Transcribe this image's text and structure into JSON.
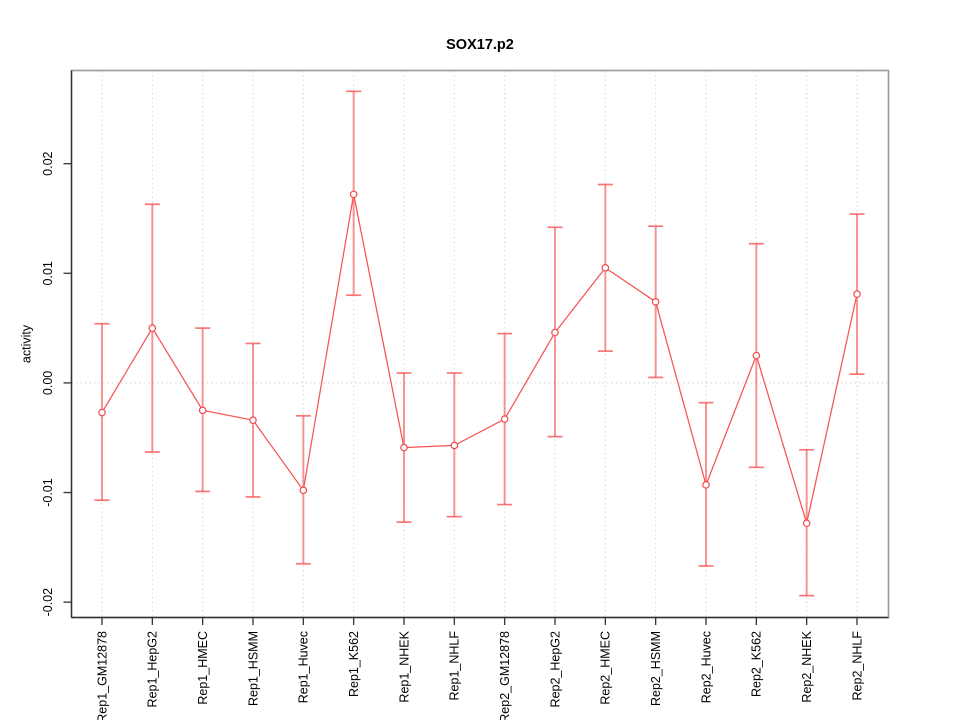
{
  "chart_data": {
    "type": "line",
    "title": "SOX17.p2",
    "xlabel": "",
    "ylabel": "activity",
    "categories": [
      "Rep1_GM12878",
      "Rep1_HepG2",
      "Rep1_HMEC",
      "Rep1_HSMM",
      "Rep1_Huvec",
      "Rep1_K562",
      "Rep1_NHEK",
      "Rep1_NHLF",
      "Rep2_GM12878",
      "Rep2_HepG2",
      "Rep2_HMEC",
      "Rep2_HSMM",
      "Rep2_Huvec",
      "Rep2_K562",
      "Rep2_NHEK",
      "Rep2_NHLF"
    ],
    "series": [
      {
        "name": "activity",
        "values": [
          -0.0027,
          0.005,
          -0.0025,
          -0.0034,
          -0.0098,
          0.0172,
          -0.0059,
          -0.0057,
          -0.0033,
          0.0046,
          0.0105,
          0.0074,
          -0.0093,
          0.0025,
          -0.0128,
          0.0081
        ],
        "err_low": [
          -0.0107,
          -0.0063,
          -0.0099,
          -0.0104,
          -0.0165,
          0.008,
          -0.0127,
          -0.0122,
          -0.0111,
          -0.0049,
          0.0029,
          0.0005,
          -0.0167,
          -0.0077,
          -0.0194,
          0.0008
        ],
        "err_high": [
          0.0054,
          0.0163,
          0.005,
          0.0036,
          -0.003,
          0.0266,
          0.0009,
          0.0009,
          0.0045,
          0.0142,
          0.0181,
          0.0143,
          -0.0018,
          0.0127,
          -0.0061,
          0.0154
        ]
      }
    ],
    "yticks": [
      {
        "value": -0.02,
        "label": "-0.02"
      },
      {
        "value": -0.01,
        "label": "-0.01"
      },
      {
        "value": 0.0,
        "label": "0.00"
      },
      {
        "value": 0.01,
        "label": "0.01"
      },
      {
        "value": 0.02,
        "label": "0.02"
      }
    ],
    "ylim": [
      -0.0214,
      0.0285
    ],
    "grid": {
      "vertical": "dotted at each category",
      "horizontal": "dotted at zero only"
    },
    "legend": "none",
    "marker": "open-circle",
    "colors": {
      "series_line": "#f75353",
      "marker_stroke": "#f04b4b",
      "error_bar": "rgba(248,80,80,0.60)",
      "error_cap": "rgba(248,80,80,0.78)",
      "grid_line": "#d7d7d7",
      "zero_line": "#cfcfcf",
      "box_light": "#9a9a9a",
      "axis_dark": "#333333",
      "background": "#ffffff"
    }
  }
}
